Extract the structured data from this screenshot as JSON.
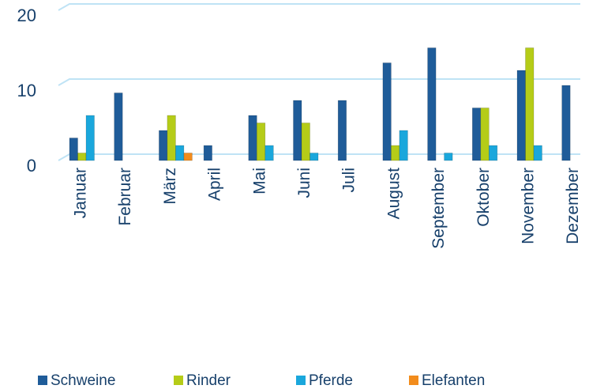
{
  "chart_data": {
    "type": "bar",
    "categories": [
      "Januar",
      "Februar",
      "März",
      "April",
      "Mai",
      "Juni",
      "Juli",
      "August",
      "September",
      "Oktober",
      "November",
      "Dezember"
    ],
    "series": [
      {
        "name": "Schweine",
        "color": "#1f5c99",
        "values": [
          3,
          9,
          4,
          2,
          6,
          8,
          8,
          13,
          15,
          7,
          12,
          10
        ]
      },
      {
        "name": "Rinder",
        "color": "#b5cc18",
        "values": [
          1,
          0,
          6,
          0,
          5,
          5,
          0,
          2,
          0,
          7,
          15,
          0
        ]
      },
      {
        "name": "Pferde",
        "color": "#1aa7dc",
        "values": [
          6,
          0,
          2,
          0,
          2,
          1,
          0,
          4,
          1,
          2,
          2,
          0
        ]
      },
      {
        "name": "Elefanten",
        "color": "#f28c1c",
        "values": [
          0,
          0,
          1,
          0,
          0,
          0,
          0,
          0,
          0,
          0,
          0,
          0
        ]
      }
    ],
    "ylim": [
      0,
      20
    ],
    "yticks": [
      0,
      10,
      20
    ],
    "grid": true,
    "legend": "bottom"
  }
}
